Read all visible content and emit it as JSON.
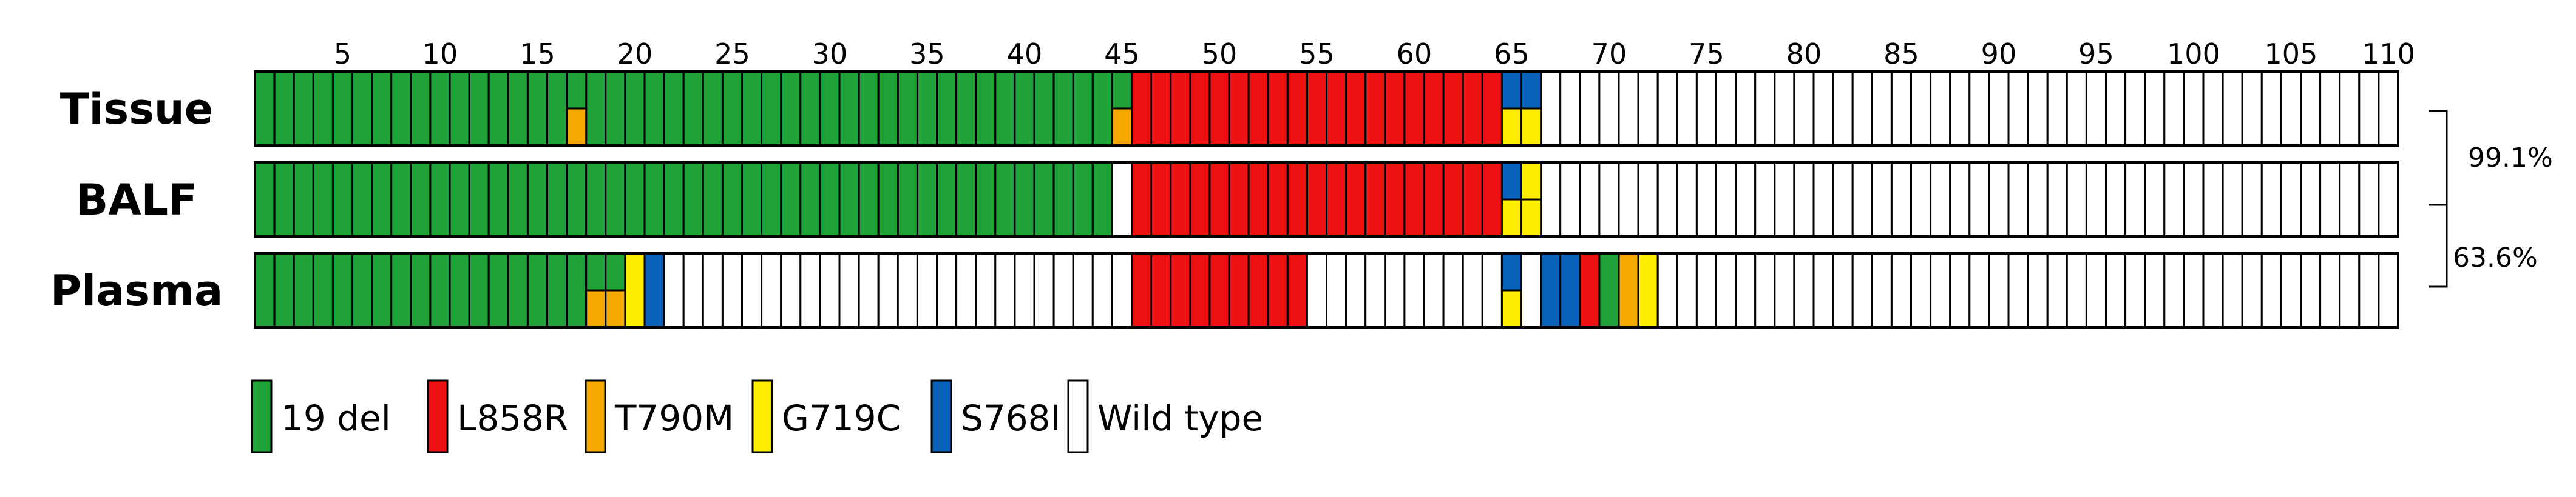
{
  "chart_data": {
    "type": "heatmap",
    "x_ticks": [
      5,
      10,
      15,
      20,
      25,
      30,
      35,
      40,
      45,
      50,
      55,
      60,
      65,
      70,
      75,
      80,
      85,
      90,
      95,
      100,
      105,
      110
    ],
    "n_samples": 110,
    "colors": {
      "19 del": "#1fa339",
      "L858R": "#ee1111",
      "T790M": "#f5a800",
      "G719C": "#ffee00",
      "S768I": "#0a63b8",
      "Wild type": "#ffffff"
    },
    "legend": [
      "19 del",
      "L858R",
      "T790M",
      "G719C",
      "S768I",
      "Wild type"
    ],
    "rows": [
      {
        "name": "Tissue",
        "segments": [
          {
            "type": "19 del",
            "from": 1,
            "to": 45
          },
          {
            "type": "L858R",
            "from": 46,
            "to": 64
          },
          {
            "type": "Wild type",
            "from": 67,
            "to": 110
          }
        ],
        "cells": [
          {
            "x": 17,
            "split": [
              "19 del",
              "T790M"
            ]
          },
          {
            "x": 45,
            "split": [
              "19 del",
              "T790M"
            ]
          },
          {
            "x": 65,
            "split": [
              "S768I",
              "G719C"
            ]
          },
          {
            "x": 66,
            "split": [
              "S768I",
              "G719C"
            ]
          }
        ]
      },
      {
        "name": "BALF",
        "segments": [
          {
            "type": "19 del",
            "from": 1,
            "to": 44
          },
          {
            "type": "Wild type",
            "from": 45,
            "to": 45
          },
          {
            "type": "L858R",
            "from": 46,
            "to": 64
          },
          {
            "type": "Wild type",
            "from": 67,
            "to": 110
          }
        ],
        "cells": [
          {
            "x": 65,
            "split": [
              "S768I",
              "G719C"
            ]
          },
          {
            "x": 66,
            "split": [
              "G719C",
              "G719C"
            ]
          }
        ]
      },
      {
        "name": "Plasma",
        "segments": [
          {
            "type": "19 del",
            "from": 1,
            "to": 19
          },
          {
            "type": "G719C",
            "from": 20,
            "to": 20
          },
          {
            "type": "S768I",
            "from": 21,
            "to": 21
          },
          {
            "type": "Wild type",
            "from": 22,
            "to": 45
          },
          {
            "type": "L858R",
            "from": 46,
            "to": 54
          },
          {
            "type": "Wild type",
            "from": 55,
            "to": 64
          },
          {
            "type": "Wild type",
            "from": 66,
            "to": 66
          },
          {
            "type": "S768I",
            "from": 67,
            "to": 68
          },
          {
            "type": "L858R",
            "from": 69,
            "to": 69
          },
          {
            "type": "19 del",
            "from": 70,
            "to": 70
          },
          {
            "type": "T790M",
            "from": 71,
            "to": 71
          },
          {
            "type": "G719C",
            "from": 72,
            "to": 72
          },
          {
            "type": "Wild type",
            "from": 73,
            "to": 110
          }
        ],
        "cells": [
          {
            "x": 18,
            "split": [
              "19 del",
              "T790M"
            ]
          },
          {
            "x": 19,
            "split": [
              "19 del",
              "T790M"
            ]
          },
          {
            "x": 65,
            "split": [
              "S768I",
              "G719C"
            ]
          }
        ]
      }
    ],
    "concordance": [
      {
        "label": "99.1%",
        "between": [
          "Tissue",
          "BALF"
        ]
      },
      {
        "label": "63.6%",
        "between": [
          "Tissue",
          "Plasma"
        ]
      }
    ]
  }
}
